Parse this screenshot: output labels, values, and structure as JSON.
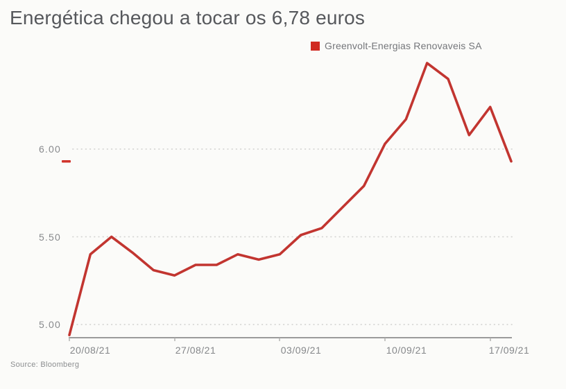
{
  "title": "Energética chegou a tocar os 6,78 euros",
  "legend": {
    "label": "Greenvolt-Energias Renovaveis SA",
    "swatch_color": "#d02a22"
  },
  "source": "Source: Bloomberg",
  "colors": {
    "background": "#fbfbf9",
    "line": "#c23530",
    "legend_swatch": "#d02a22",
    "last_price_marker": "#d0342c",
    "grid_dots": "#d5d5d3",
    "axis_line": "#9b9b9b",
    "tick_mark": "#aeaeac",
    "title_text": "#56585c",
    "axis_text": "#87898c"
  },
  "chart_data": {
    "type": "line",
    "title": "Energética chegou a tocar os 6,78 euros",
    "high_touched_from_title": 6.78,
    "currency": "EUR",
    "series": [
      {
        "name": "Greenvolt-Energias Renovaveis SA",
        "color": "#c23530",
        "x": [
          "19/08/21",
          "20/08/21",
          "23/08/21",
          "24/08/21",
          "25/08/21",
          "26/08/21",
          "27/08/21",
          "30/08/21",
          "31/08/21",
          "01/09/21",
          "02/09/21",
          "03/09/21",
          "06/09/21",
          "07/09/21",
          "08/09/21",
          "09/09/21",
          "10/09/21",
          "13/09/21",
          "14/09/21",
          "15/09/21",
          "16/09/21",
          "17/09/21"
        ],
        "values": [
          4.94,
          5.4,
          5.5,
          5.41,
          5.31,
          5.28,
          5.34,
          5.34,
          5.4,
          5.37,
          5.4,
          5.51,
          5.55,
          5.67,
          5.79,
          6.03,
          6.17,
          6.49,
          6.4,
          6.08,
          6.24,
          5.93
        ]
      }
    ],
    "last_price": 5.93,
    "x_tick_labels": [
      "20/08/21",
      "27/08/21",
      "03/09/21",
      "10/09/21",
      "17/09/21"
    ],
    "y_tick_labels": [
      "6.00",
      "5.50",
      "5.00"
    ],
    "y_tick_values": [
      6.0,
      5.5,
      5.0
    ],
    "ylim": [
      4.925,
      6.55
    ],
    "grid": "horizontal-dotted",
    "legend_position": "top-right",
    "xlabel": "",
    "ylabel": ""
  }
}
